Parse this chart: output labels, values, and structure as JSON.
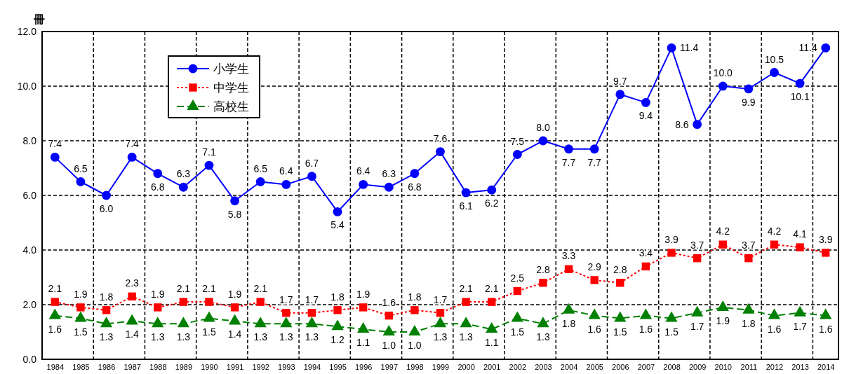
{
  "chart_data": {
    "type": "line",
    "ylabel": "冊",
    "categories": [
      "1984",
      "1985",
      "1986",
      "1987",
      "1988",
      "1989",
      "1990",
      "1991",
      "1992",
      "1993",
      "1994",
      "1995",
      "1996",
      "1997",
      "1998",
      "1999",
      "2000",
      "2001",
      "2002",
      "2003",
      "2004",
      "2005",
      "2006",
      "2007",
      "2008",
      "2009",
      "2010",
      "2011",
      "2012",
      "2013",
      "2014"
    ],
    "series": [
      {
        "name": "小学生",
        "color": "#0000ff",
        "marker": "circle",
        "line_style": "solid",
        "values": [
          7.4,
          6.5,
          6.0,
          7.4,
          6.8,
          6.3,
          7.1,
          5.8,
          6.5,
          6.4,
          6.7,
          5.4,
          6.4,
          6.3,
          6.8,
          7.6,
          6.1,
          6.2,
          7.5,
          8.0,
          7.7,
          7.7,
          9.7,
          9.4,
          11.4,
          8.6,
          10.0,
          9.9,
          10.5,
          10.1,
          11.4
        ],
        "value_labels": [
          "7.4",
          "6.5",
          "6.0",
          "7.4",
          "6.8",
          "6.3",
          "7.1",
          "5.8",
          "6.5",
          "6.4",
          "6.7",
          "5.4",
          "6.4",
          "6.3",
          "6.8",
          "7.6",
          "6.1",
          "6.2",
          "7.5",
          "8.0",
          "7.7",
          "7.7",
          "9.7",
          "9.4",
          "11.4",
          "8.6",
          "10.0",
          "9.9",
          "10.5",
          "10.1",
          "11.4"
        ]
      },
      {
        "name": "中学生",
        "color": "#ff0000",
        "marker": "square",
        "line_style": "dotted",
        "values": [
          2.1,
          1.9,
          1.8,
          2.3,
          1.9,
          2.1,
          2.1,
          1.9,
          2.1,
          1.7,
          1.7,
          1.8,
          1.9,
          1.6,
          1.8,
          1.7,
          2.1,
          2.1,
          2.5,
          2.8,
          3.3,
          2.9,
          2.8,
          3.4,
          3.9,
          3.7,
          4.2,
          3.7,
          4.2,
          4.1,
          3.9
        ],
        "value_labels": [
          "2.1",
          "1.9",
          "1.8",
          "2.3",
          "1.9",
          "2.1",
          "2.1",
          "1.9",
          "2.1",
          "1.7",
          "1.7",
          "1.8",
          "1.9",
          "1.6",
          "1.8",
          "1.7",
          "2.1",
          "2.1",
          "2.5",
          "2.8",
          "3.3",
          "2.9",
          "2.8",
          "3.4",
          "3.9",
          "3.7",
          "4.2",
          "3.7",
          "4.2",
          "4.1",
          "3.9"
        ]
      },
      {
        "name": "高校生",
        "color": "#008000",
        "marker": "triangle",
        "line_style": "dashed",
        "values": [
          1.6,
          1.5,
          1.3,
          1.4,
          1.3,
          1.3,
          1.5,
          1.4,
          1.3,
          1.3,
          1.3,
          1.2,
          1.1,
          1.0,
          1.0,
          1.3,
          1.3,
          1.1,
          1.5,
          1.3,
          1.8,
          1.6,
          1.5,
          1.6,
          1.5,
          1.7,
          1.9,
          1.8,
          1.6,
          1.7,
          1.6
        ],
        "value_labels": [
          "1.6",
          "1.5",
          "1.3",
          "1.4",
          "1.3",
          "1.3",
          "1.5",
          "1.4",
          "1.3",
          "1.3",
          "1.3",
          "1.2",
          "1.1",
          "1.0",
          "1.0",
          "1.3",
          "1.3",
          "1.1",
          "1.5",
          "1.3",
          "1.8",
          "1.6",
          "1.5",
          "1.6",
          "1.5",
          "1.7",
          "1.9",
          "1.8",
          "1.6",
          "1.7",
          "1.6"
        ]
      }
    ],
    "ylim": [
      0,
      12
    ],
    "yticks": [
      {
        "value": 0,
        "label": "0.0"
      },
      {
        "value": 2,
        "label": "2.0"
      },
      {
        "value": 4,
        "label": "4.0"
      },
      {
        "value": 6,
        "label": "6.0"
      },
      {
        "value": 8,
        "label": "8.0"
      },
      {
        "value": 10,
        "label": "10.0"
      },
      {
        "value": 12,
        "label": "12.0"
      }
    ],
    "grid": true,
    "legend": "top left"
  }
}
